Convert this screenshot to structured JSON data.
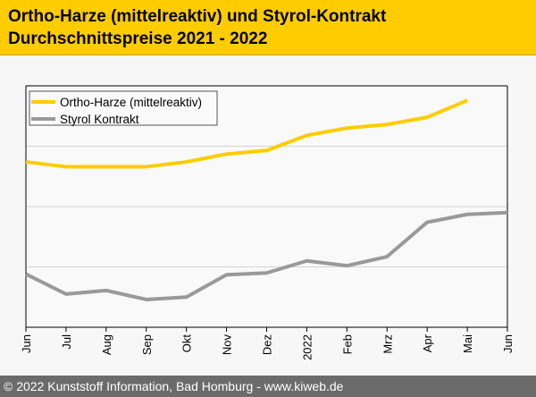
{
  "header": {
    "title_line1": "Ortho-Harze (mittelreaktiv) und Styrol-Kontrakt",
    "title_line2": "Durchschnittspreise 2021 - 2022"
  },
  "footer": {
    "copyright": "© 2022 Kunststoff Information, Bad Homburg - www.kiweb.de"
  },
  "chart_data": {
    "type": "line",
    "title": "Ortho-Harze (mittelreaktiv) und Styrol-Kontrakt Durchschnittspreise 2021 - 2022",
    "xlabel": "",
    "ylabel": "",
    "categories": [
      "Jun",
      "Jul",
      "Aug",
      "Sep",
      "Okt",
      "Nov",
      "Dez",
      "2022",
      "Feb",
      "Mrz",
      "Apr",
      "Mai",
      "Jun"
    ],
    "ylim": [
      0,
      4
    ],
    "grid": true,
    "legend": "top-left",
    "series": [
      {
        "name": "Ortho-Harze (mittelreaktiv)",
        "color": "#ffcc00",
        "values": [
          2.74,
          2.66,
          2.66,
          2.66,
          2.74,
          2.87,
          2.93,
          3.18,
          3.3,
          3.36,
          3.48,
          3.76,
          null
        ]
      },
      {
        "name": "Styrol Kontrakt",
        "color": "#999999",
        "values": [
          0.88,
          0.55,
          0.61,
          0.46,
          0.5,
          0.87,
          0.9,
          1.1,
          1.02,
          1.17,
          1.74,
          1.87,
          1.9
        ]
      }
    ]
  }
}
